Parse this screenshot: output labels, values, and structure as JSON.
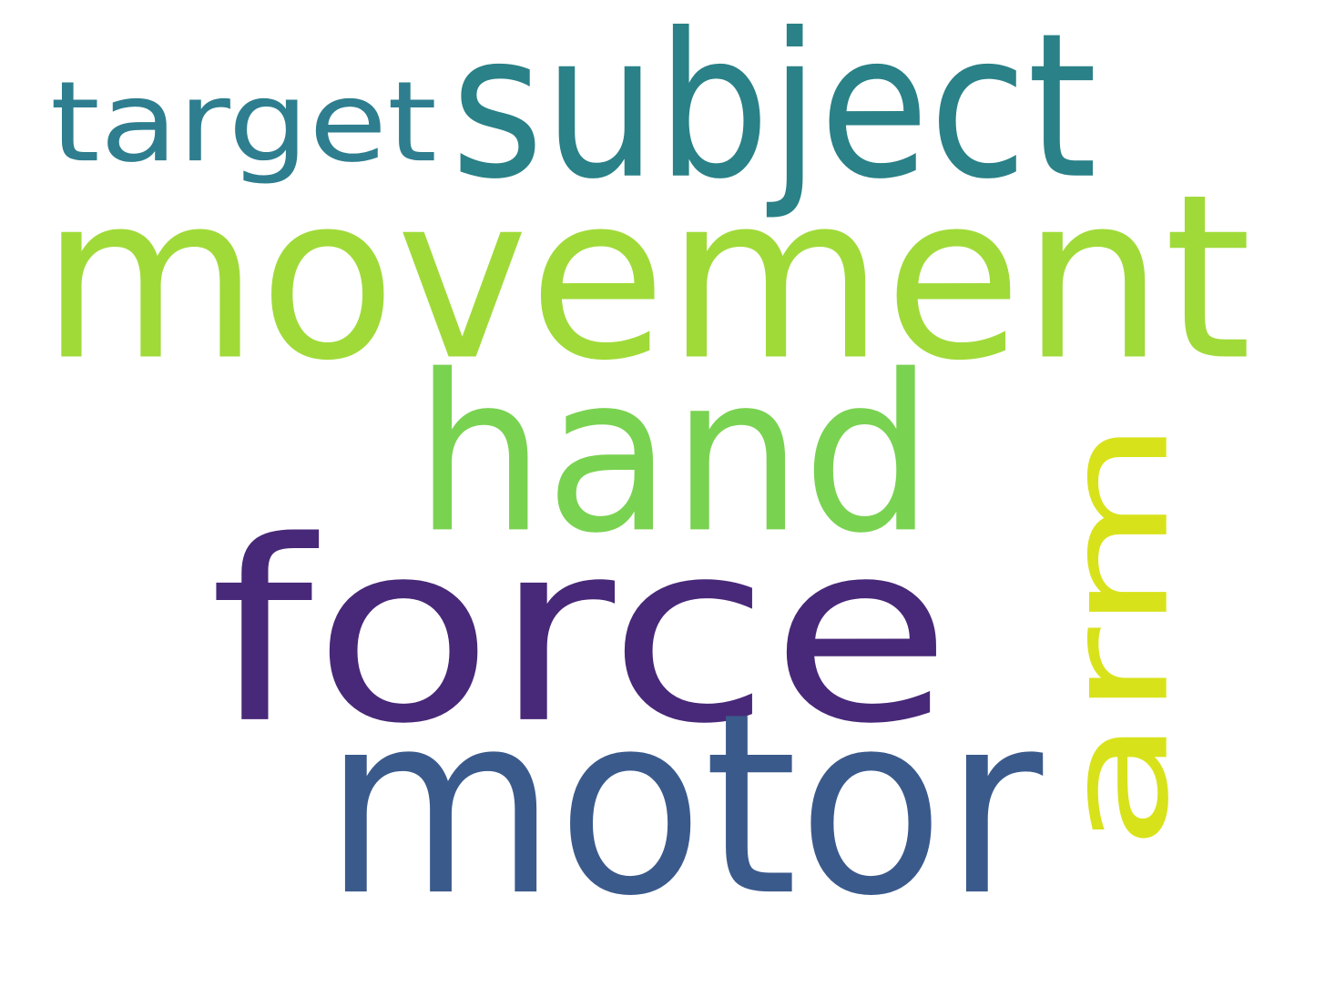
{
  "words": [
    {
      "key": "target",
      "text": "target",
      "color": "#2e7e8f"
    },
    {
      "key": "subject",
      "text": "subject",
      "color": "#2a8187"
    },
    {
      "key": "movement",
      "text": "movement",
      "color": "#a0da39"
    },
    {
      "key": "hand",
      "text": "hand",
      "color": "#7ad251"
    },
    {
      "key": "arm",
      "text": "arm",
      "color": "#d8e21a",
      "orientation": "vertical"
    },
    {
      "key": "force",
      "text": "force",
      "color": "#482878"
    },
    {
      "key": "motor",
      "text": "motor",
      "color": "#3b5a8c"
    }
  ]
}
